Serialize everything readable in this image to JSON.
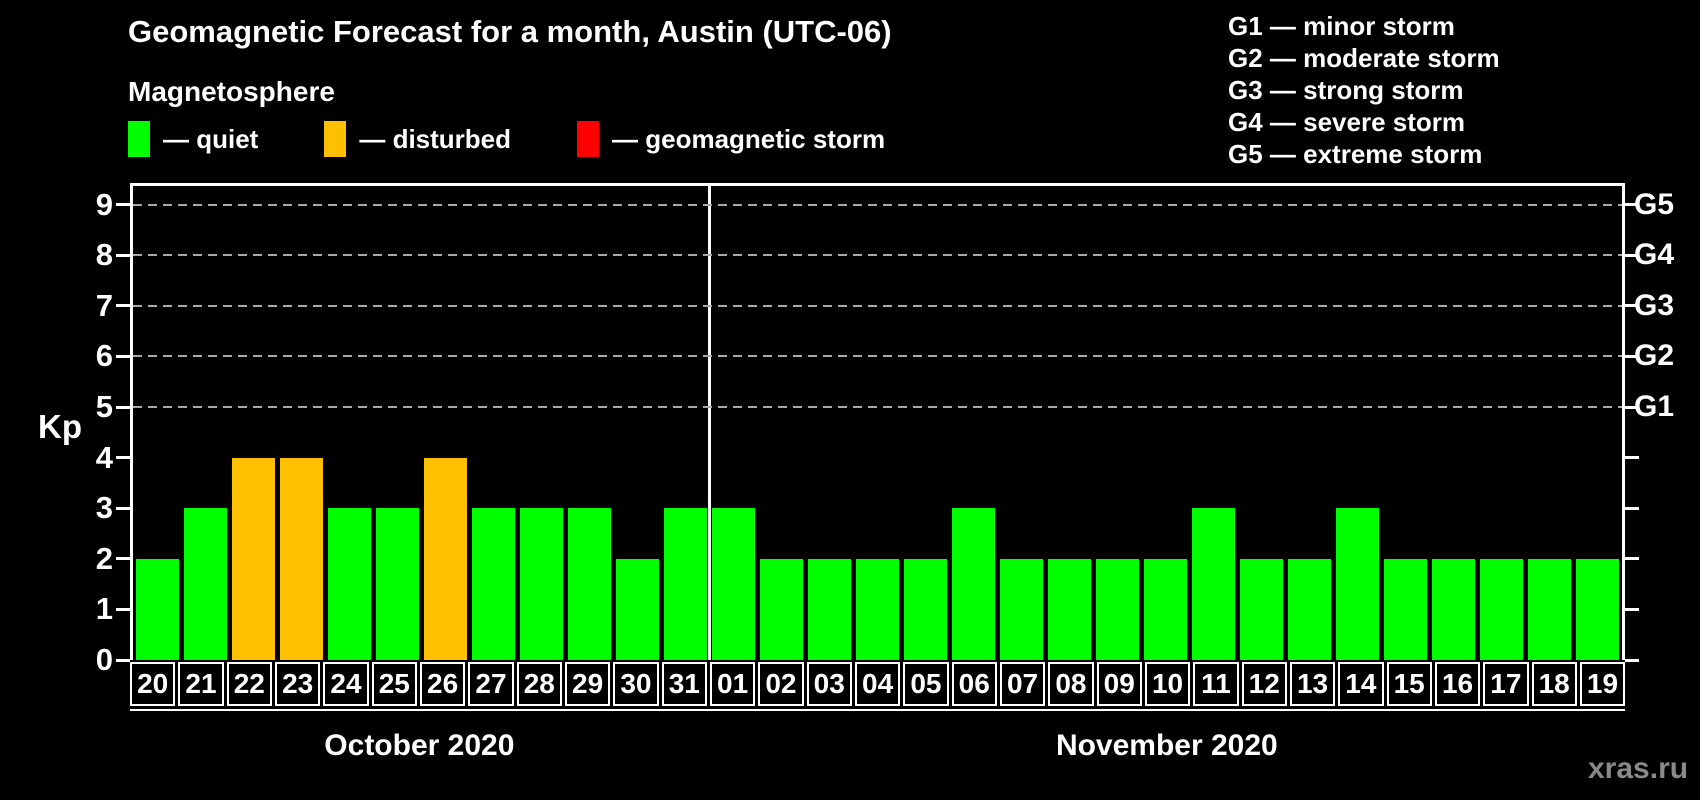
{
  "title": "Geomagnetic Forecast for a month, Austin (UTC-06)",
  "subtitle": "Magnetosphere",
  "legend": [
    {
      "key": "quiet",
      "label": "— quiet",
      "color": "#00ff00"
    },
    {
      "key": "disturbed",
      "label": "— disturbed",
      "color": "#ffc000"
    },
    {
      "key": "storm",
      "label": "— geomagnetic storm",
      "color": "#ff0000"
    }
  ],
  "g_legend": [
    "G1 — minor storm",
    "G2 — moderate storm",
    "G3 — strong storm",
    "G4 — severe storm",
    "G5 — extreme storm"
  ],
  "watermark": "xras.ru",
  "chart_data": {
    "type": "bar",
    "title": "Geomagnetic Forecast for a month, Austin (UTC-06)",
    "ylabel": "Kp",
    "ylim": [
      0,
      9.4
    ],
    "yticks": [
      0,
      1,
      2,
      3,
      4,
      5,
      6,
      7,
      8,
      9
    ],
    "gridlines_at_kp": [
      5,
      6,
      7,
      8,
      9
    ],
    "grid": "dashed-horizontal",
    "legend_position": "top-left",
    "right_axis": [
      {
        "kp": 5,
        "label": "G1"
      },
      {
        "kp": 6,
        "label": "G2"
      },
      {
        "kp": 7,
        "label": "G3"
      },
      {
        "kp": 8,
        "label": "G4"
      },
      {
        "kp": 9,
        "label": "G5"
      }
    ],
    "months": [
      {
        "label": "October 2020",
        "days": 12
      },
      {
        "label": "November 2020",
        "days": 19
      }
    ],
    "bars": [
      {
        "date": "20",
        "month": "October 2020",
        "kp": 2,
        "state": "quiet"
      },
      {
        "date": "21",
        "month": "October 2020",
        "kp": 3,
        "state": "quiet"
      },
      {
        "date": "22",
        "month": "October 2020",
        "kp": 4,
        "state": "disturbed"
      },
      {
        "date": "23",
        "month": "October 2020",
        "kp": 4,
        "state": "disturbed"
      },
      {
        "date": "24",
        "month": "October 2020",
        "kp": 3,
        "state": "quiet"
      },
      {
        "date": "25",
        "month": "October 2020",
        "kp": 3,
        "state": "quiet"
      },
      {
        "date": "26",
        "month": "October 2020",
        "kp": 4,
        "state": "disturbed"
      },
      {
        "date": "27",
        "month": "October 2020",
        "kp": 3,
        "state": "quiet"
      },
      {
        "date": "28",
        "month": "October 2020",
        "kp": 3,
        "state": "quiet"
      },
      {
        "date": "29",
        "month": "October 2020",
        "kp": 3,
        "state": "quiet"
      },
      {
        "date": "30",
        "month": "October 2020",
        "kp": 2,
        "state": "quiet"
      },
      {
        "date": "31",
        "month": "October 2020",
        "kp": 3,
        "state": "quiet"
      },
      {
        "date": "01",
        "month": "November 2020",
        "kp": 3,
        "state": "quiet"
      },
      {
        "date": "02",
        "month": "November 2020",
        "kp": 2,
        "state": "quiet"
      },
      {
        "date": "03",
        "month": "November 2020",
        "kp": 2,
        "state": "quiet"
      },
      {
        "date": "04",
        "month": "November 2020",
        "kp": 2,
        "state": "quiet"
      },
      {
        "date": "05",
        "month": "November 2020",
        "kp": 2,
        "state": "quiet"
      },
      {
        "date": "06",
        "month": "November 2020",
        "kp": 3,
        "state": "quiet"
      },
      {
        "date": "07",
        "month": "November 2020",
        "kp": 2,
        "state": "quiet"
      },
      {
        "date": "08",
        "month": "November 2020",
        "kp": 2,
        "state": "quiet"
      },
      {
        "date": "09",
        "month": "November 2020",
        "kp": 2,
        "state": "quiet"
      },
      {
        "date": "10",
        "month": "November 2020",
        "kp": 2,
        "state": "quiet"
      },
      {
        "date": "11",
        "month": "November 2020",
        "kp": 3,
        "state": "quiet"
      },
      {
        "date": "12",
        "month": "November 2020",
        "kp": 2,
        "state": "quiet"
      },
      {
        "date": "13",
        "month": "November 2020",
        "kp": 2,
        "state": "quiet"
      },
      {
        "date": "14",
        "month": "November 2020",
        "kp": 3,
        "state": "quiet"
      },
      {
        "date": "15",
        "month": "November 2020",
        "kp": 2,
        "state": "quiet"
      },
      {
        "date": "16",
        "month": "November 2020",
        "kp": 2,
        "state": "quiet"
      },
      {
        "date": "17",
        "month": "November 2020",
        "kp": 2,
        "state": "quiet"
      },
      {
        "date": "18",
        "month": "November 2020",
        "kp": 2,
        "state": "quiet"
      },
      {
        "date": "19",
        "month": "November 2020",
        "kp": 2,
        "state": "quiet"
      }
    ]
  }
}
